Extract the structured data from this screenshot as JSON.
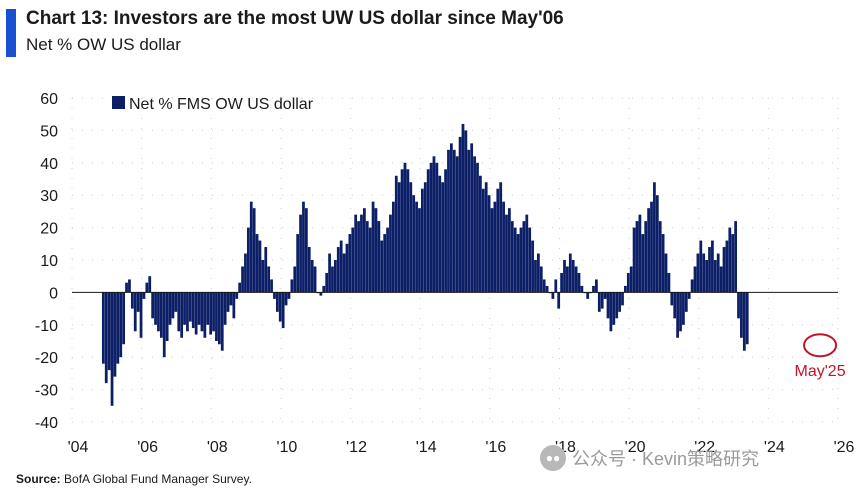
{
  "header": {
    "title": "Chart 13: Investors are the most UW US dollar since May'06",
    "subtitle": "Net % OW US dollar",
    "accent_color": "#1b4fd1"
  },
  "footer": {
    "source_label": "Source:",
    "source_text": "BofA Global Fund Manager Survey."
  },
  "watermark": {
    "text": "公众号 · Kevin策略研究",
    "icon": "wechat-icon"
  },
  "chart_data": {
    "type": "bar",
    "series": [
      {
        "name": "Net % FMS OW US dollar",
        "color": "#0c1f66",
        "x_start": 2004.9,
        "step": 0.0833,
        "values": [
          -22,
          -28,
          -24,
          -35,
          -26,
          -22,
          -20,
          -16,
          3,
          4,
          -5,
          -12,
          -6,
          -14,
          -2,
          3,
          5,
          -8,
          -10,
          -12,
          -14,
          -20,
          -15,
          -10,
          -8,
          -6,
          -12,
          -14,
          -10,
          -12,
          -9,
          -11,
          -13,
          -10,
          -12,
          -14,
          -10,
          -13,
          -12,
          -15,
          -16,
          -18,
          -10,
          -6,
          -4,
          -8,
          -2,
          3,
          8,
          12,
          20,
          28,
          26,
          18,
          16,
          10,
          14,
          8,
          4,
          -2,
          -6,
          -9,
          -11,
          -4,
          -2,
          4,
          8,
          18,
          24,
          28,
          26,
          14,
          10,
          8,
          0,
          -1,
          2,
          6,
          12,
          8,
          10,
          14,
          16,
          12,
          15,
          18,
          20,
          24,
          22,
          24,
          26,
          22,
          20,
          28,
          26,
          22,
          16,
          18,
          20,
          24,
          28,
          36,
          34,
          38,
          40,
          38,
          34,
          30,
          28,
          26,
          32,
          34,
          38,
          40,
          42,
          40,
          36,
          34,
          38,
          44,
          46,
          44,
          42,
          48,
          52,
          50,
          44,
          46,
          42,
          40,
          36,
          32,
          34,
          30,
          26,
          28,
          32,
          34,
          28,
          24,
          26,
          22,
          20,
          18,
          20,
          22,
          24,
          20,
          16,
          10,
          12,
          8,
          4,
          2,
          0,
          -2,
          4,
          -5,
          6,
          10,
          8,
          12,
          10,
          8,
          6,
          2,
          0,
          -2,
          0,
          2,
          4,
          -6,
          -5,
          -2,
          -8,
          -12,
          -10,
          -8,
          -6,
          -4,
          2,
          6,
          8,
          20,
          22,
          24,
          18,
          22,
          26,
          28,
          34,
          30,
          22,
          18,
          12,
          6,
          -4,
          -8,
          -14,
          -12,
          -10,
          -6,
          -2,
          4,
          8,
          12,
          16,
          12,
          10,
          14,
          16,
          10,
          12,
          8,
          14,
          16,
          20,
          18,
          22,
          -8,
          -14,
          -18,
          -16
        ]
      }
    ],
    "y_ticks": [
      60,
      50,
      40,
      30,
      20,
      10,
      0,
      -10,
      -20,
      -30,
      -40
    ],
    "ylim": [
      -40,
      60
    ],
    "x_ticks": [
      "'04",
      "'06",
      "'08",
      "'10",
      "'12",
      "'14",
      "'16",
      "'18",
      "'20",
      "'22",
      "'24",
      "'26"
    ],
    "x_tick_values": [
      2004,
      2006,
      2008,
      2010,
      2012,
      2014,
      2016,
      2018,
      2020,
      2022,
      2024,
      2026
    ],
    "xlim": [
      2004,
      2026
    ],
    "grid": true,
    "legend_position": "top-left",
    "annotation": {
      "text": "May'25",
      "x": 2025.37,
      "y": -16,
      "color": "#c0142a"
    }
  }
}
